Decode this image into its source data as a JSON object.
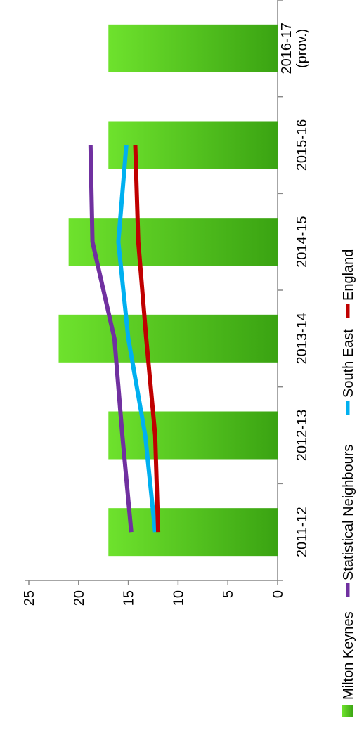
{
  "chart_data": {
    "type": "bar",
    "orientation": "rotated-90-clockwise",
    "categories": [
      "2011-12",
      "2012-13",
      "2013-14",
      "2014-15",
      "2015-16",
      "2016-17 (prov.)"
    ],
    "category_lines": [
      [
        "2011-12"
      ],
      [
        "2012-13"
      ],
      [
        "2013-14"
      ],
      [
        "2014-15"
      ],
      [
        "2015-16"
      ],
      [
        "2016-17",
        "(prov.)"
      ]
    ],
    "value_ticks": [
      0,
      5,
      10,
      15,
      20,
      25
    ],
    "ylim": [
      0,
      25
    ],
    "bar_series": {
      "name": "Milton Keynes",
      "values": [
        17,
        17,
        22,
        21,
        17,
        17
      ],
      "color": "#4cc51f"
    },
    "line_series": [
      {
        "name": "Statistical Neighbours",
        "values": [
          14.7,
          15.6,
          16.4,
          18.6,
          18.8,
          null
        ],
        "color": "#7030a0"
      },
      {
        "name": "South East",
        "values": [
          12.3,
          13.3,
          15.0,
          16.0,
          15.2,
          null
        ],
        "color": "#00b0f0"
      },
      {
        "name": "England",
        "values": [
          12.0,
          12.3,
          13.2,
          14.0,
          14.3,
          null
        ],
        "color": "#c00000"
      }
    ],
    "legend": {
      "position": "bottom",
      "order": [
        "Milton Keynes",
        "Statistical Neighbours",
        "South East",
        "England"
      ]
    },
    "grid": false
  }
}
